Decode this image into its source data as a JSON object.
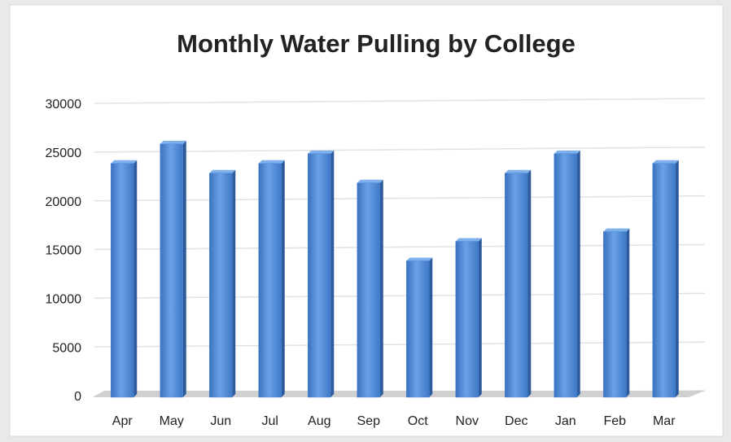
{
  "chart_data": {
    "type": "bar",
    "title": "Monthly Water Pulling by College",
    "categories": [
      "Apr",
      "May",
      "Jun",
      "Jul",
      "Aug",
      "Sep",
      "Oct",
      "Nov",
      "Dec",
      "Jan",
      "Feb",
      "Mar"
    ],
    "values": [
      24000,
      26000,
      23000,
      24000,
      25000,
      22000,
      14000,
      16000,
      23000,
      25000,
      17000,
      24000
    ],
    "color": "#4a86d4",
    "ylim": [
      0,
      30000
    ],
    "yticks": [
      0,
      5000,
      10000,
      15000,
      20000,
      25000,
      30000
    ],
    "grid": true
  }
}
